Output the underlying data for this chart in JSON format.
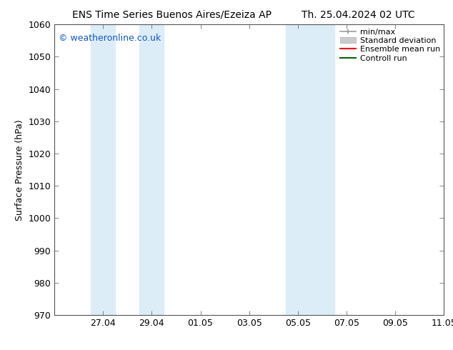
{
  "title_left": "ENS Time Series Buenos Aires/Ezeiza AP",
  "title_right": "Th. 25.04.2024 02 UTC",
  "ylabel": "Surface Pressure (hPa)",
  "ylim": [
    970,
    1060
  ],
  "yticks": [
    970,
    980,
    990,
    1000,
    1010,
    1020,
    1030,
    1040,
    1050,
    1060
  ],
  "xlim": [
    0,
    16
  ],
  "xtick_labels": [
    "27.04",
    "29.04",
    "01.05",
    "03.05",
    "05.05",
    "07.05",
    "09.05",
    "11.05"
  ],
  "xtick_positions": [
    2,
    4,
    6,
    8,
    10,
    12,
    14,
    16
  ],
  "shaded_bands": [
    {
      "x_start": 1.5,
      "x_end": 2.5,
      "color": "#dcedf8"
    },
    {
      "x_start": 3.5,
      "x_end": 4.5,
      "color": "#dcedf8"
    },
    {
      "x_start": 9.5,
      "x_end": 10.5,
      "color": "#dcedf8"
    },
    {
      "x_start": 10.5,
      "x_end": 11.5,
      "color": "#dcedf8"
    }
  ],
  "watermark": "© weatheronline.co.uk",
  "watermark_color": "#1155cc",
  "background_color": "#ffffff",
  "spine_color": "#555555",
  "tick_color": "#555555",
  "font_size_title": 10,
  "font_size_axis": 9,
  "font_size_legend": 8,
  "font_size_ticks": 9
}
